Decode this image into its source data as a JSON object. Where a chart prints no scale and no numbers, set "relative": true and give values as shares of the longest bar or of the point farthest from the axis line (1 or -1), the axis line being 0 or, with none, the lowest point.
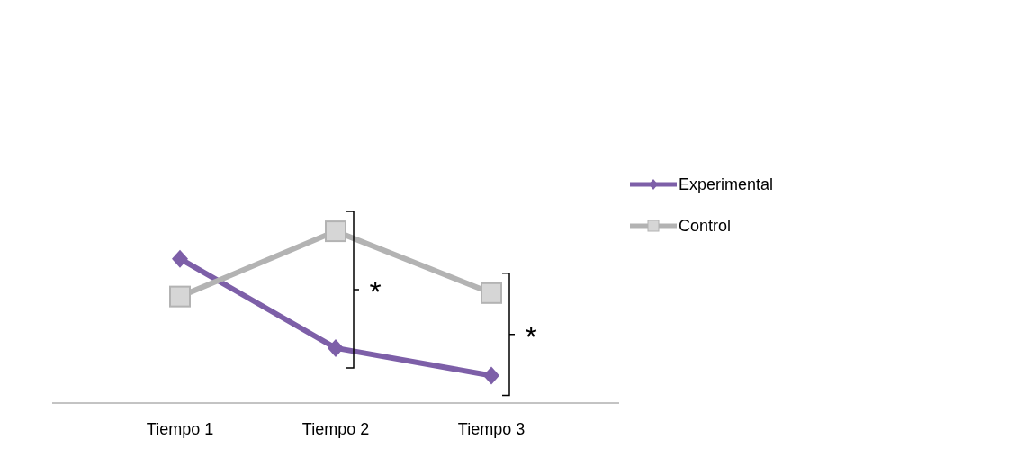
{
  "chart_data": {
    "type": "line",
    "relative": true,
    "categories": [
      "Tiempo 1",
      "Tiempo 2",
      "Tiempo 3"
    ],
    "series": [
      {
        "name": "Experimental",
        "color": "#7d5fa8",
        "marker": "diamond",
        "values": [
          0.84,
          0.32,
          0.16
        ]
      },
      {
        "name": "Control",
        "color": "#b3b3b3",
        "marker": "square",
        "values": [
          0.62,
          1,
          0.64
        ]
      }
    ],
    "annotations": [
      "*",
      "*"
    ],
    "legend": "right"
  }
}
